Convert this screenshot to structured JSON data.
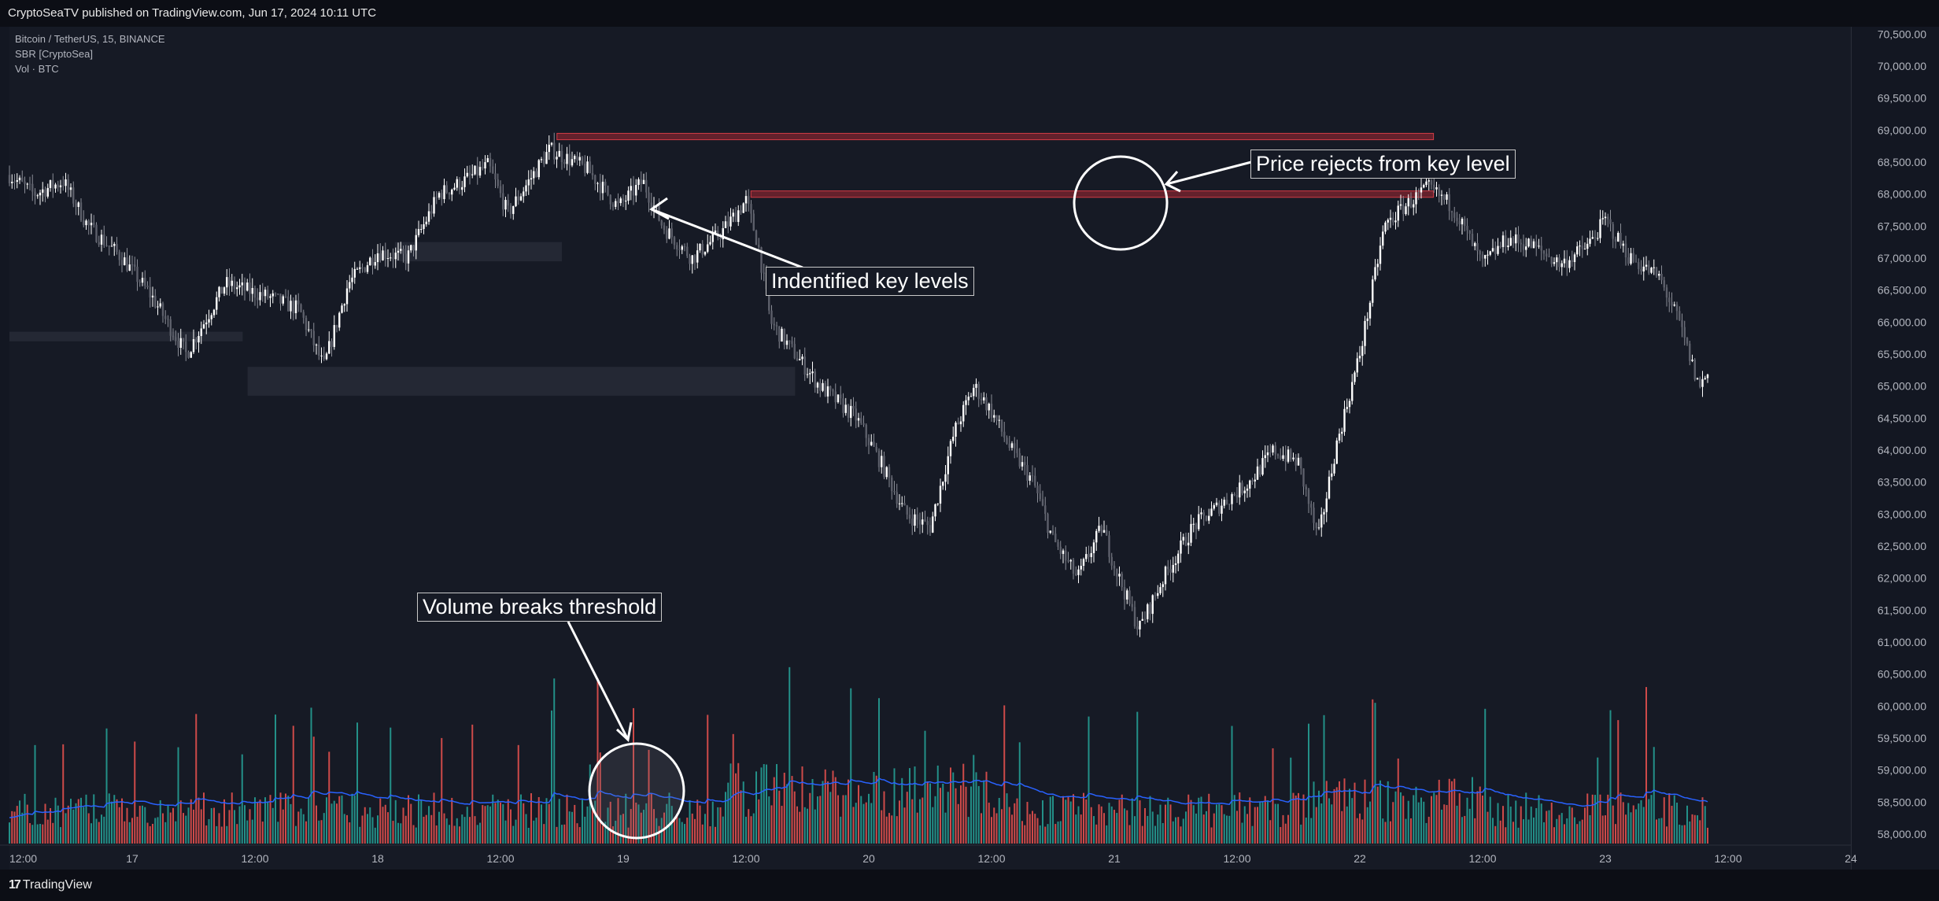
{
  "header": {
    "publish_line": "CryptoSeaTV published on TradingView.com, Jun 17, 2024 10:11 UTC"
  },
  "legend": {
    "symbol": "Bitcoin / TetherUS, 15, BINANCE",
    "indicator": "SBR [CryptoSea]",
    "volume": "Vol · BTC"
  },
  "annotations": {
    "key_levels": "Indentified key levels",
    "price_rejects": "Price rejects from key level",
    "volume_breaks": "Volume breaks threshold"
  },
  "footer": {
    "brand": "TradingView",
    "brand_icon": "tradingview-logo-icon"
  },
  "colors": {
    "background": "#161a25",
    "up_candle": "#ffffff",
    "down_candle": "#8a8d96",
    "volume_up": "#26a69a",
    "volume_down": "#ef5350",
    "volume_ma": "#2962ff",
    "resistance_zone": "#b22833",
    "support_zone": "#2a2e39"
  },
  "chart_data": {
    "type": "candlestick",
    "symbol": "BTCUSDT",
    "interval": "15",
    "price_ticks": [
      "70,500.00",
      "70,000.00",
      "69,500.00",
      "69,000.00",
      "68,500.00",
      "68,000.00",
      "67,500.00",
      "67,000.00",
      "66,500.00",
      "66,000.00",
      "65,500.00",
      "65,000.00",
      "64,500.00",
      "64,000.00",
      "63,500.00",
      "63,000.00",
      "62,500.00",
      "62,000.00",
      "61,500.00",
      "61,000.00",
      "60,500.00",
      "60,000.00",
      "59,500.00",
      "59,000.00",
      "58,500.00",
      "58,000.00"
    ],
    "time_ticks": [
      "12:00",
      "17",
      "12:00",
      "18",
      "12:00",
      "19",
      "12:00",
      "20",
      "12:00",
      "21",
      "12:00",
      "22",
      "12:00",
      "23",
      "12:00",
      "24"
    ],
    "ylim": [
      57800,
      70600
    ],
    "close_path": [
      {
        "t": 0,
        "p": 68300
      },
      {
        "t": 0.1,
        "p": 68000
      },
      {
        "t": 0.22,
        "p": 68200
      },
      {
        "t": 0.32,
        "p": 67500
      },
      {
        "t": 0.46,
        "p": 67000
      },
      {
        "t": 0.58,
        "p": 66400
      },
      {
        "t": 0.72,
        "p": 65500
      },
      {
        "t": 0.88,
        "p": 66600
      },
      {
        "t": 1.05,
        "p": 66400
      },
      {
        "t": 1.18,
        "p": 66200
      },
      {
        "t": 1.28,
        "p": 65300
      },
      {
        "t": 1.38,
        "p": 66600
      },
      {
        "t": 1.5,
        "p": 67100
      },
      {
        "t": 1.62,
        "p": 67000
      },
      {
        "t": 1.75,
        "p": 68000
      },
      {
        "t": 1.85,
        "p": 68200
      },
      {
        "t": 1.95,
        "p": 68450
      },
      {
        "t": 2.03,
        "p": 67700
      },
      {
        "t": 2.2,
        "p": 68700
      },
      {
        "t": 2.35,
        "p": 68400
      },
      {
        "t": 2.48,
        "p": 67800
      },
      {
        "t": 2.58,
        "p": 68200
      },
      {
        "t": 2.66,
        "p": 67500
      },
      {
        "t": 2.78,
        "p": 67000
      },
      {
        "t": 2.9,
        "p": 67400
      },
      {
        "t": 3.0,
        "p": 67900
      },
      {
        "t": 3.05,
        "p": 67200
      },
      {
        "t": 3.1,
        "p": 66000
      },
      {
        "t": 3.18,
        "p": 65600
      },
      {
        "t": 3.3,
        "p": 65000
      },
      {
        "t": 3.45,
        "p": 64500
      },
      {
        "t": 3.55,
        "p": 63800
      },
      {
        "t": 3.65,
        "p": 63000
      },
      {
        "t": 3.75,
        "p": 62800
      },
      {
        "t": 3.85,
        "p": 64300
      },
      {
        "t": 3.93,
        "p": 65000
      },
      {
        "t": 4.0,
        "p": 64600
      },
      {
        "t": 4.08,
        "p": 64000
      },
      {
        "t": 4.17,
        "p": 63500
      },
      {
        "t": 4.25,
        "p": 62600
      },
      {
        "t": 4.35,
        "p": 62000
      },
      {
        "t": 4.45,
        "p": 62800
      },
      {
        "t": 4.5,
        "p": 62200
      },
      {
        "t": 4.6,
        "p": 61200
      },
      {
        "t": 4.7,
        "p": 62000
      },
      {
        "t": 4.82,
        "p": 62800
      },
      {
        "t": 4.95,
        "p": 63200
      },
      {
        "t": 5.05,
        "p": 63500
      },
      {
        "t": 5.15,
        "p": 64000
      },
      {
        "t": 5.25,
        "p": 63800
      },
      {
        "t": 5.33,
        "p": 62600
      },
      {
        "t": 5.4,
        "p": 64000
      },
      {
        "t": 5.5,
        "p": 65500
      },
      {
        "t": 5.6,
        "p": 67500
      },
      {
        "t": 5.68,
        "p": 67800
      },
      {
        "t": 5.78,
        "p": 68100
      },
      {
        "t": 5.88,
        "p": 67800
      },
      {
        "t": 6.0,
        "p": 66900
      },
      {
        "t": 6.1,
        "p": 67300
      },
      {
        "t": 6.2,
        "p": 67200
      },
      {
        "t": 6.32,
        "p": 66900
      },
      {
        "t": 6.43,
        "p": 67200
      },
      {
        "t": 6.5,
        "p": 67600
      },
      {
        "t": 6.6,
        "p": 67000
      },
      {
        "t": 6.72,
        "p": 66700
      },
      {
        "t": 6.8,
        "p": 66000
      },
      {
        "t": 6.88,
        "p": 65000
      },
      {
        "t": 6.92,
        "p": 65200
      }
    ],
    "resistance_zones": [
      {
        "t_start": 2.23,
        "t_end": 5.8,
        "low": 68850,
        "high": 68950
      },
      {
        "t_start": 3.02,
        "t_end": 5.8,
        "low": 67950,
        "high": 68050
      }
    ],
    "support_zones": [
      {
        "t_start": 0.0,
        "t_end": 0.95,
        "low": 65700,
        "high": 65850
      },
      {
        "t_start": 0.97,
        "t_end": 3.2,
        "low": 64850,
        "high": 65300
      },
      {
        "t_start": 1.57,
        "t_end": 2.25,
        "low": 66950,
        "high": 67250
      }
    ]
  }
}
